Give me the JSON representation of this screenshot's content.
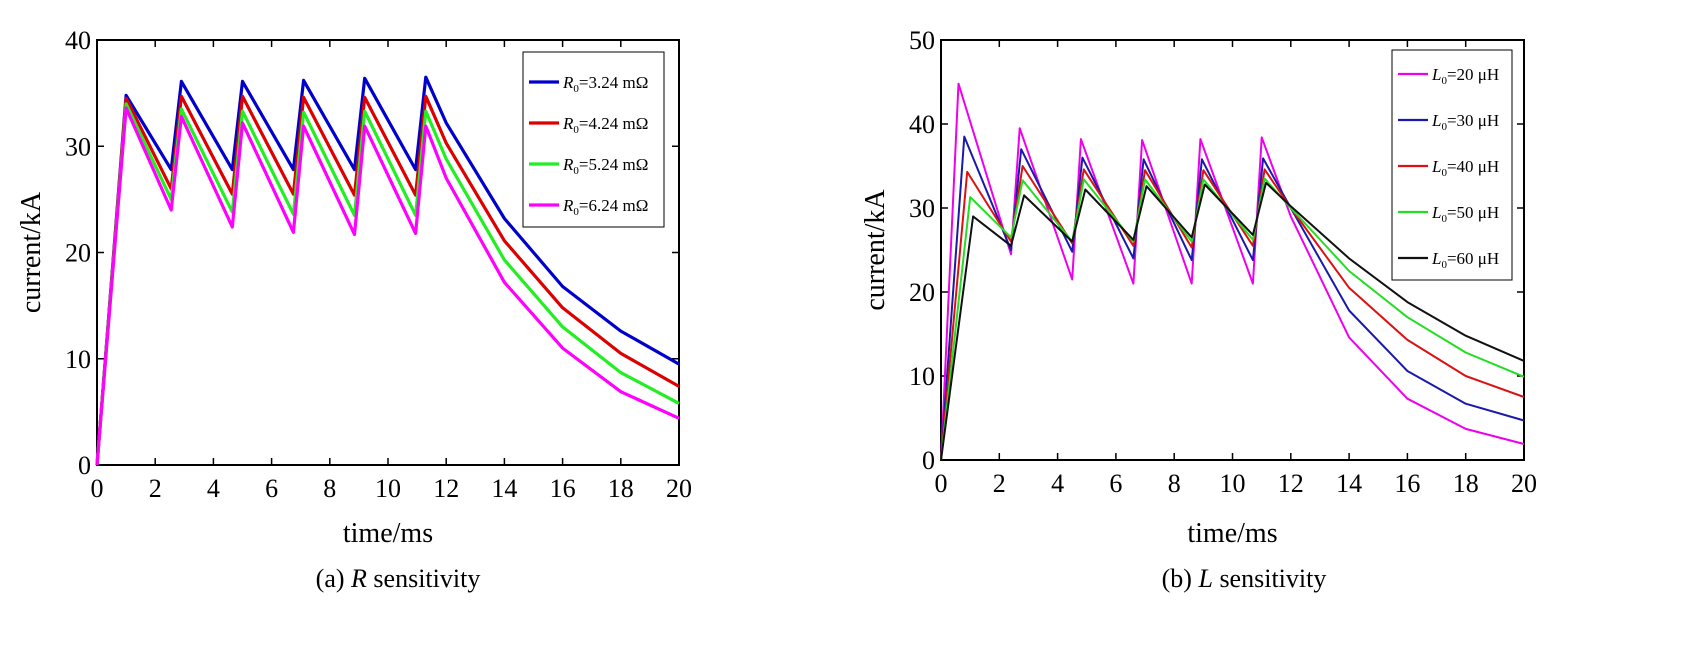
{
  "chart_data": [
    {
      "type": "line",
      "caption_prefix": "(a) ",
      "caption_var": "R",
      "caption_suffix": " sensitivity",
      "xlabel": "time/ms",
      "ylabel": "current/kA",
      "xlim": [
        0,
        20
      ],
      "ylim": [
        0,
        40
      ],
      "xticks": [
        0,
        2,
        4,
        6,
        8,
        10,
        12,
        14,
        16,
        18,
        20
      ],
      "yticks": [
        0,
        10,
        20,
        30,
        40
      ],
      "legend_position": "top-right",
      "series": [
        {
          "name": "R0=3.24 mΩ",
          "var": "R",
          "sub": "0",
          "value": "=3.24 mΩ",
          "color": "#0000cc",
          "x": [
            0,
            1.0,
            2.55,
            2.9,
            4.65,
            5.0,
            6.75,
            7.1,
            8.85,
            9.2,
            10.95,
            11.3,
            12,
            14,
            16,
            18,
            20
          ],
          "y": [
            0,
            34.8,
            27.8,
            36.1,
            27.8,
            36.1,
            27.8,
            36.2,
            27.8,
            36.4,
            27.8,
            36.5,
            32.2,
            23.2,
            16.8,
            12.6,
            9.5
          ]
        },
        {
          "name": "R0=4.24 mΩ",
          "var": "R",
          "sub": "0",
          "value": "=4.24 mΩ",
          "color": "#dd0000",
          "x": [
            0,
            1.0,
            2.55,
            2.9,
            4.65,
            5.0,
            6.75,
            7.1,
            8.85,
            9.2,
            10.95,
            11.3,
            12,
            14,
            16,
            18,
            20
          ],
          "y": [
            0,
            34.5,
            26.0,
            34.7,
            25.5,
            34.7,
            25.5,
            34.6,
            25.4,
            34.6,
            25.4,
            34.7,
            30.3,
            21.1,
            14.8,
            10.5,
            7.4
          ]
        },
        {
          "name": "R0=5.24 mΩ",
          "var": "R",
          "sub": "0",
          "value": "=5.24 mΩ",
          "color": "#22ee22",
          "x": [
            0,
            1.0,
            2.55,
            2.9,
            4.65,
            5.0,
            6.75,
            7.1,
            8.85,
            9.2,
            10.95,
            11.3,
            12,
            14,
            16,
            18,
            20
          ],
          "y": [
            0,
            34.0,
            25.0,
            33.5,
            23.8,
            33.3,
            23.6,
            33.2,
            23.5,
            33.3,
            23.5,
            33.3,
            28.8,
            19.3,
            13.0,
            8.7,
            5.8
          ]
        },
        {
          "name": "R0=6.24 mΩ",
          "var": "R",
          "sub": "0",
          "value": "=6.24 mΩ",
          "color": "#ff00ff",
          "x": [
            0,
            1.0,
            2.55,
            2.9,
            4.65,
            5.0,
            6.75,
            7.1,
            8.85,
            9.2,
            10.95,
            11.3,
            12,
            14,
            16,
            18,
            20
          ],
          "y": [
            0,
            33.6,
            24.0,
            32.8,
            22.4,
            32.2,
            21.9,
            31.9,
            21.7,
            31.9,
            21.8,
            31.9,
            27.0,
            17.2,
            11.0,
            6.9,
            4.4
          ]
        }
      ]
    },
    {
      "type": "line",
      "caption_prefix": "(b) ",
      "caption_var": "L",
      "caption_suffix": " sensitivity",
      "xlabel": "time/ms",
      "ylabel": "current/kA",
      "xlim": [
        0,
        20
      ],
      "ylim": [
        0,
        50
      ],
      "xticks": [
        0,
        2,
        4,
        6,
        8,
        10,
        12,
        14,
        16,
        18,
        20
      ],
      "yticks": [
        0,
        10,
        20,
        30,
        40,
        50
      ],
      "legend_position": "top-right",
      "series": [
        {
          "name": "L0=20 μH",
          "var": "L",
          "sub": "0",
          "value": "=20 μH",
          "color": "#ee00ee",
          "x": [
            0,
            0.6,
            2.4,
            2.7,
            4.5,
            4.8,
            6.6,
            6.9,
            8.6,
            8.9,
            10.7,
            11.0,
            12,
            14,
            16,
            18,
            20
          ],
          "y": [
            0,
            44.8,
            24.5,
            39.5,
            21.5,
            38.2,
            21.0,
            38.1,
            21.0,
            38.2,
            21.0,
            38.4,
            29.0,
            14.6,
            7.3,
            3.7,
            1.9
          ]
        },
        {
          "name": "L0=30 μH",
          "var": "L",
          "sub": "0",
          "value": "=30 μH",
          "color": "#1a1aaa",
          "x": [
            0,
            0.8,
            2.4,
            2.75,
            4.5,
            4.85,
            6.6,
            6.95,
            8.6,
            8.95,
            10.7,
            11.05,
            12,
            14,
            16,
            18,
            20
          ],
          "y": [
            0,
            38.5,
            25.0,
            37.0,
            24.8,
            36.0,
            24.0,
            35.8,
            23.8,
            35.8,
            23.8,
            35.9,
            30.0,
            17.8,
            10.6,
            6.7,
            4.7
          ]
        },
        {
          "name": "L0=40 μH",
          "var": "L",
          "sub": "0",
          "value": "=40 μH",
          "color": "#dd1111",
          "x": [
            0,
            0.9,
            2.4,
            2.8,
            4.5,
            4.9,
            6.6,
            7.0,
            8.6,
            9.0,
            10.7,
            11.1,
            12,
            14,
            16,
            18,
            20
          ],
          "y": [
            0,
            34.3,
            26.0,
            35.0,
            25.8,
            34.6,
            25.5,
            34.5,
            25.3,
            34.5,
            25.5,
            34.6,
            30.0,
            20.5,
            14.3,
            10.0,
            7.5
          ]
        },
        {
          "name": "L0=50 μH",
          "var": "L",
          "sub": "0",
          "value": "=50 μH",
          "color": "#22dd22",
          "x": [
            0,
            1.0,
            2.4,
            2.8,
            4.5,
            4.9,
            6.6,
            7.0,
            8.6,
            9.0,
            10.7,
            11.1,
            12,
            14,
            16,
            18,
            20
          ],
          "y": [
            0,
            31.3,
            26.5,
            33.3,
            26.0,
            33.4,
            26.0,
            33.4,
            26.0,
            33.4,
            26.2,
            33.5,
            30.0,
            22.5,
            17.0,
            12.8,
            9.9
          ]
        },
        {
          "name": "L0=60 μH",
          "var": "L",
          "sub": "0",
          "value": "=60 μH",
          "color": "#111111",
          "x": [
            0,
            1.1,
            2.4,
            2.85,
            4.5,
            4.95,
            6.6,
            7.05,
            8.6,
            9.05,
            10.7,
            11.15,
            12,
            14,
            16,
            18,
            20
          ],
          "y": [
            0,
            29.0,
            25.5,
            31.5,
            26.0,
            32.2,
            26.2,
            32.6,
            26.5,
            32.8,
            26.8,
            33.0,
            30.2,
            24.0,
            18.8,
            14.8,
            11.8
          ]
        }
      ]
    }
  ]
}
